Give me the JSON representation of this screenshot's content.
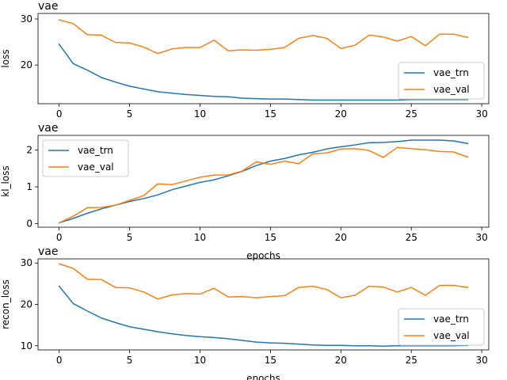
{
  "colors": {
    "vae_trn": "#1f77b4",
    "vae_val": "#ff7f0e",
    "axis": "#000000",
    "legend_border": "#cccccc"
  },
  "chart_data": [
    {
      "type": "line",
      "title": "vae",
      "xlabel": "",
      "ylabel": "loss",
      "xlim": [
        -1.5,
        30.5
      ],
      "ylim": [
        11.6,
        31.2
      ],
      "xticks": [
        0,
        5,
        10,
        15,
        20,
        25,
        30
      ],
      "yticks": [
        20,
        30
      ],
      "grid": false,
      "legend_position": "lower-right",
      "x": [
        0,
        1,
        2,
        3,
        4,
        5,
        6,
        7,
        8,
        9,
        10,
        11,
        12,
        13,
        14,
        15,
        16,
        17,
        18,
        19,
        20,
        21,
        22,
        23,
        24,
        25,
        26,
        27,
        28,
        29
      ],
      "series": [
        {
          "name": "vae_trn",
          "values": [
            24.5,
            20.3,
            18.9,
            17.3,
            16.3,
            15.4,
            14.8,
            14.2,
            13.9,
            13.6,
            13.4,
            13.2,
            13.1,
            12.8,
            12.7,
            12.6,
            12.6,
            12.5,
            12.4,
            12.4,
            12.4,
            12.4,
            12.4,
            12.4,
            12.4,
            12.5,
            12.5,
            12.5,
            12.5,
            12.5
          ]
        },
        {
          "name": "vae_val",
          "values": [
            29.8,
            29.0,
            26.6,
            26.5,
            24.9,
            24.8,
            23.9,
            22.5,
            23.5,
            23.8,
            23.8,
            25.4,
            23.1,
            23.3,
            23.2,
            23.4,
            23.8,
            25.8,
            26.4,
            25.8,
            23.6,
            24.3,
            26.5,
            26.1,
            25.2,
            26.2,
            24.2,
            26.7,
            26.7,
            26.0
          ]
        }
      ]
    },
    {
      "type": "line",
      "title": "vae",
      "xlabel": "epochs",
      "ylabel": "kl_loss",
      "xlim": [
        -1.5,
        30.5
      ],
      "ylim": [
        -0.1,
        2.4
      ],
      "xticks": [
        0,
        5,
        10,
        15,
        20,
        25,
        30
      ],
      "yticks": [
        0,
        1,
        2
      ],
      "grid": false,
      "legend_position": "upper-left",
      "x": [
        0,
        1,
        2,
        3,
        4,
        5,
        6,
        7,
        8,
        9,
        10,
        11,
        12,
        13,
        14,
        15,
        16,
        17,
        18,
        19,
        20,
        21,
        22,
        23,
        24,
        25,
        26,
        27,
        28,
        29
      ],
      "series": [
        {
          "name": "vae_trn",
          "values": [
            0.02,
            0.14,
            0.28,
            0.4,
            0.5,
            0.6,
            0.68,
            0.78,
            0.92,
            1.02,
            1.12,
            1.19,
            1.3,
            1.42,
            1.58,
            1.7,
            1.77,
            1.87,
            1.94,
            2.03,
            2.09,
            2.14,
            2.2,
            2.21,
            2.23,
            2.27,
            2.27,
            2.27,
            2.25,
            2.18
          ]
        },
        {
          "name": "vae_val",
          "values": [
            0.02,
            0.2,
            0.43,
            0.44,
            0.5,
            0.63,
            0.76,
            1.08,
            1.06,
            1.16,
            1.26,
            1.32,
            1.32,
            1.43,
            1.68,
            1.61,
            1.7,
            1.63,
            1.9,
            1.92,
            2.03,
            2.04,
            1.99,
            1.8,
            2.07,
            2.04,
            2.01,
            1.96,
            1.95,
            1.81
          ]
        }
      ]
    },
    {
      "type": "line",
      "title": "vae",
      "xlabel": "epochs",
      "ylabel": "recon_loss",
      "xlim": [
        -1.5,
        30.5
      ],
      "ylim": [
        9.0,
        31.0
      ],
      "xticks": [
        0,
        5,
        10,
        15,
        20,
        25,
        30
      ],
      "yticks": [
        10,
        20,
        30
      ],
      "grid": false,
      "legend_position": "lower-right",
      "x": [
        0,
        1,
        2,
        3,
        4,
        5,
        6,
        7,
        8,
        9,
        10,
        11,
        12,
        13,
        14,
        15,
        16,
        17,
        18,
        19,
        20,
        21,
        22,
        23,
        24,
        25,
        26,
        27,
        28,
        29
      ],
      "series": [
        {
          "name": "vae_trn",
          "values": [
            24.4,
            20.2,
            18.4,
            16.7,
            15.6,
            14.6,
            14.0,
            13.4,
            12.9,
            12.5,
            12.2,
            12.0,
            11.7,
            11.3,
            10.9,
            10.7,
            10.6,
            10.4,
            10.2,
            10.1,
            10.1,
            10.0,
            10.0,
            9.9,
            10.0,
            10.0,
            10.0,
            10.0,
            10.0,
            10.1
          ]
        },
        {
          "name": "vae_val",
          "values": [
            29.8,
            28.7,
            26.1,
            26.0,
            24.1,
            24.0,
            23.0,
            21.3,
            22.3,
            22.6,
            22.5,
            23.9,
            21.8,
            21.9,
            21.6,
            21.9,
            22.1,
            24.1,
            24.4,
            23.6,
            21.6,
            22.2,
            24.4,
            24.2,
            23.0,
            24.1,
            22.2,
            24.6,
            24.6,
            24.1
          ]
        }
      ]
    }
  ]
}
